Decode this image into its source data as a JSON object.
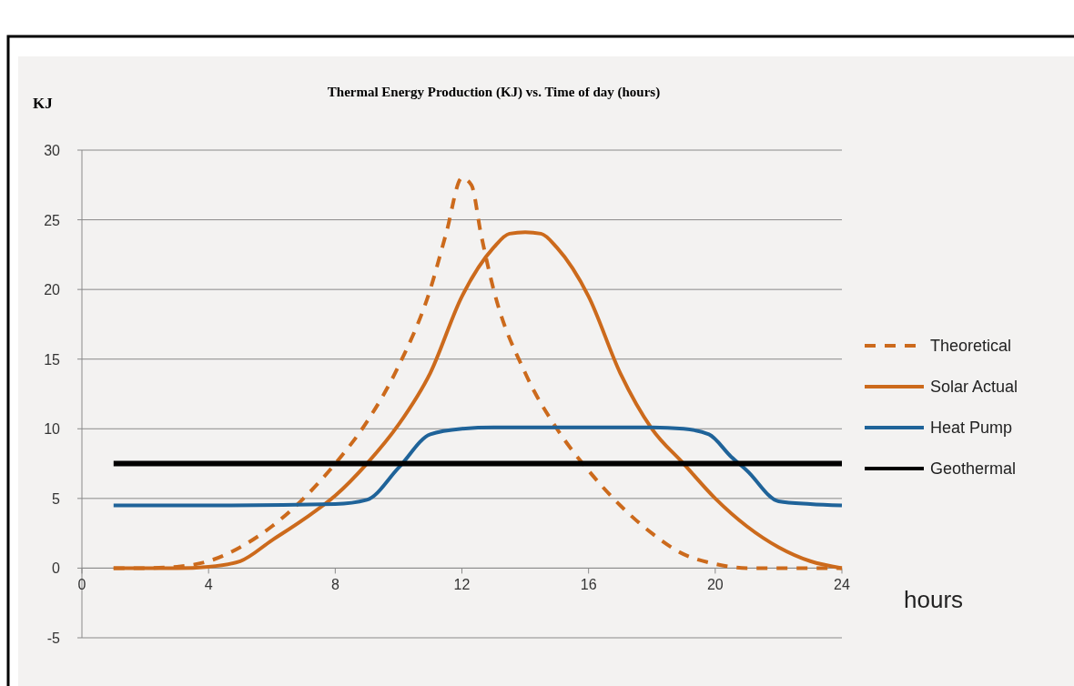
{
  "chart_data": {
    "type": "line",
    "title": "Thermal Energy Production (KJ) vs. Time of day (hours)",
    "ylabel": "KJ",
    "xlabel": "hours",
    "xlim": [
      0,
      24
    ],
    "xticks": [
      0,
      4,
      8,
      12,
      16,
      20,
      24
    ],
    "ylim": [
      -5,
      30
    ],
    "yticks": [
      -5,
      0,
      5,
      10,
      15,
      20,
      25,
      30
    ],
    "grid": "y",
    "legend": "right",
    "series": [
      {
        "name": "Theoretical",
        "color": "#cc6a1c",
        "line_style": "dashed",
        "x": [
          1,
          2,
          3,
          4,
          5,
          6,
          7,
          8,
          9,
          10,
          11,
          11.5,
          12,
          12.3,
          12.6,
          13,
          14,
          15,
          16,
          17,
          18,
          19,
          20,
          21,
          22,
          23,
          24
        ],
        "values": [
          0,
          0,
          0.1,
          0.5,
          1.5,
          3,
          5,
          7.5,
          10.5,
          14.5,
          20,
          24,
          28,
          27.5,
          24,
          20,
          14,
          10,
          7,
          4.5,
          2.5,
          1,
          0.3,
          0,
          0,
          0,
          0
        ]
      },
      {
        "name": "Solar Actual",
        "color": "#cc6a1c",
        "line_style": "solid",
        "x": [
          1,
          2,
          3,
          4,
          5,
          6,
          7,
          8,
          9,
          10,
          11,
          12,
          13,
          13.5,
          14,
          14.5,
          15,
          16,
          17,
          18,
          19,
          20,
          21,
          22,
          23,
          24
        ],
        "values": [
          0,
          0,
          0,
          0.1,
          0.5,
          2,
          3.5,
          5.2,
          7.5,
          10.3,
          14,
          19.5,
          23,
          24,
          24.1,
          24,
          23,
          19.5,
          14,
          10,
          7.5,
          5,
          3,
          1.5,
          0.5,
          0
        ]
      },
      {
        "name": "Heat Pump",
        "color": "#1f6399",
        "line_style": "solid",
        "x": [
          1,
          4,
          8,
          9,
          10,
          11,
          12,
          13,
          16,
          18,
          19,
          19.8,
          20.5,
          21,
          22,
          23,
          24
        ],
        "values": [
          4.5,
          4.5,
          4.6,
          4.9,
          7.2,
          9.6,
          10,
          10.1,
          10.1,
          10.1,
          10,
          9.6,
          8,
          7,
          4.8,
          4.6,
          4.5
        ]
      },
      {
        "name": "Geothermal",
        "color": "#000000",
        "line_style": "solid",
        "x": [
          1,
          24
        ],
        "values": [
          7.5,
          7.5
        ]
      }
    ]
  }
}
